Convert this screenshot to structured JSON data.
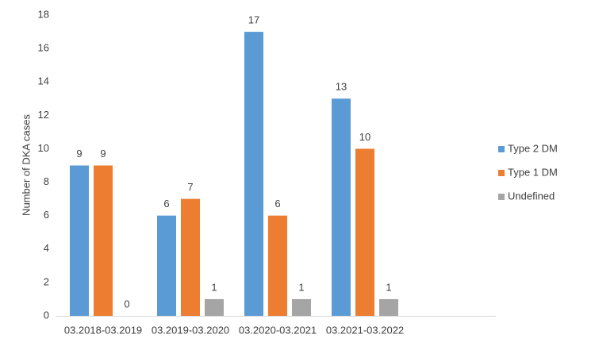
{
  "chart_data": {
    "type": "bar",
    "y_label": "Number of DKA cases",
    "categories": [
      "03.2018-03.2019",
      "03.2019-03.2020",
      "03.2020-03.2021",
      "03.2021-03.2022"
    ],
    "series": [
      {
        "name": "Type 2 DM",
        "color": "#5b9bd5",
        "values": [
          9,
          6,
          17,
          13
        ]
      },
      {
        "name": "Type 1 DM",
        "color": "#ed7d31",
        "values": [
          9,
          7,
          6,
          10
        ]
      },
      {
        "name": "Undefined",
        "color": "#a5a5a5",
        "values": [
          0,
          1,
          1,
          1
        ]
      }
    ],
    "ylim": [
      0,
      18
    ],
    "yticks": [
      0,
      2,
      4,
      6,
      8,
      10,
      12,
      14,
      16,
      18
    ],
    "grid": false,
    "legend": "right"
  }
}
